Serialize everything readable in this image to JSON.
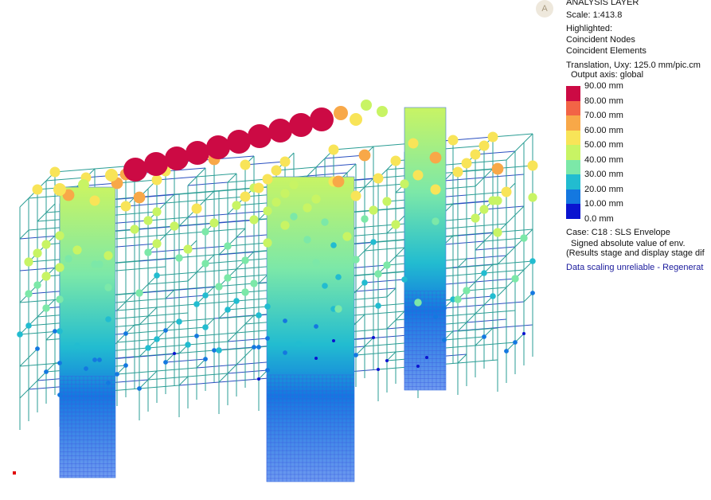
{
  "badge": "A",
  "panel": {
    "title": "ANALYSIS LAYER",
    "scale": "Scale: 1:413.8",
    "highlighted": "Highlighted:",
    "highlight_items": [
      "Coincident Nodes",
      "Coincident Elements"
    ],
    "translation": "Translation, Uxy: 125.0 mm/pic.cm",
    "output_axis": "Output axis: global",
    "legend": {
      "labels": [
        "90.00 mm",
        "80.00 mm",
        "70.00 mm",
        "60.00 mm",
        "50.00 mm",
        "40.00 mm",
        "30.00 mm",
        "20.00 mm",
        "10.00 mm",
        "0.0 mm"
      ],
      "colors": [
        "#cc0a44",
        "#f26446",
        "#f8a848",
        "#f8e458",
        "#c8f464",
        "#7ce8a8",
        "#22bcd0",
        "#1478e0",
        "#0a14d0"
      ]
    },
    "case": "Case: C18 : SLS Envelope",
    "signed": "Signed absolute value of env.",
    "stage_note": "(Results stage and display stage dif",
    "warning": "Data scaling unreliable - Regenerat"
  }
}
